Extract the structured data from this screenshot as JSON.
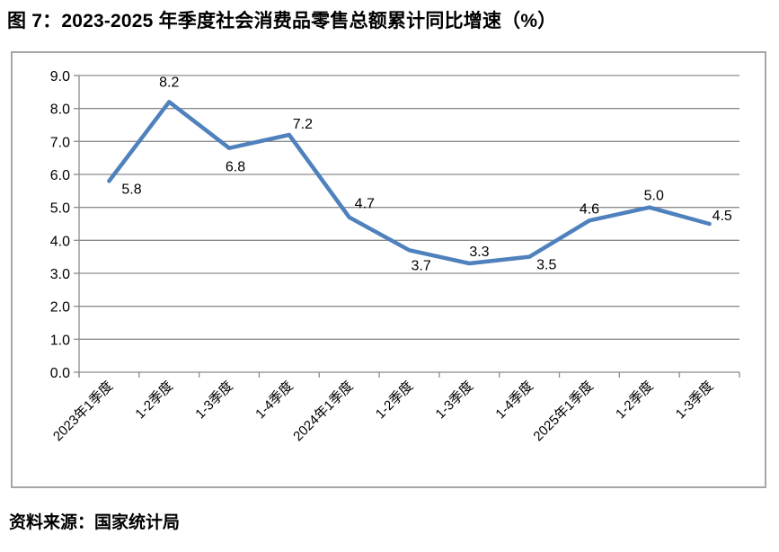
{
  "header": {
    "title": "图 7：2023-2025 年季度社会消费品零售总额累计同比增速（%）"
  },
  "footer": {
    "source": "资料来源：国家统计局"
  },
  "chart_data": {
    "type": "line",
    "title": "2023-2025 年季度社会消费品零售总额累计同比增速（%）",
    "categories": [
      "2023年1季度",
      "1-2季度",
      "1-3季度",
      "1-4季度",
      "2024年1季度",
      "1-2季度",
      "1-3季度",
      "1-4季度",
      "2025年1季度",
      "1-2季度",
      "1-3季度"
    ],
    "values": [
      5.8,
      8.2,
      6.8,
      7.2,
      4.7,
      3.7,
      3.3,
      3.5,
      4.6,
      5.0,
      4.5
    ],
    "data_labels": [
      "5.8",
      "8.2",
      "6.8",
      "7.2",
      "4.7",
      "3.7",
      "3.3",
      "3.5",
      "4.6",
      "5.0",
      "4.5"
    ],
    "xlabel": "",
    "ylabel": "",
    "ylim": [
      0.0,
      9.0
    ],
    "ytick_step": 1.0,
    "ytick_labels": [
      "0.0",
      "1.0",
      "2.0",
      "3.0",
      "4.0",
      "5.0",
      "6.0",
      "7.0",
      "8.0",
      "9.0"
    ],
    "grid": "horizontal",
    "legend_position": "none",
    "colors": {
      "line": "#4F81BD",
      "gridline": "#8c8c8c",
      "axis": "#8c8c8c",
      "frame_border": "#a6a6a6",
      "text": "#000000"
    }
  }
}
